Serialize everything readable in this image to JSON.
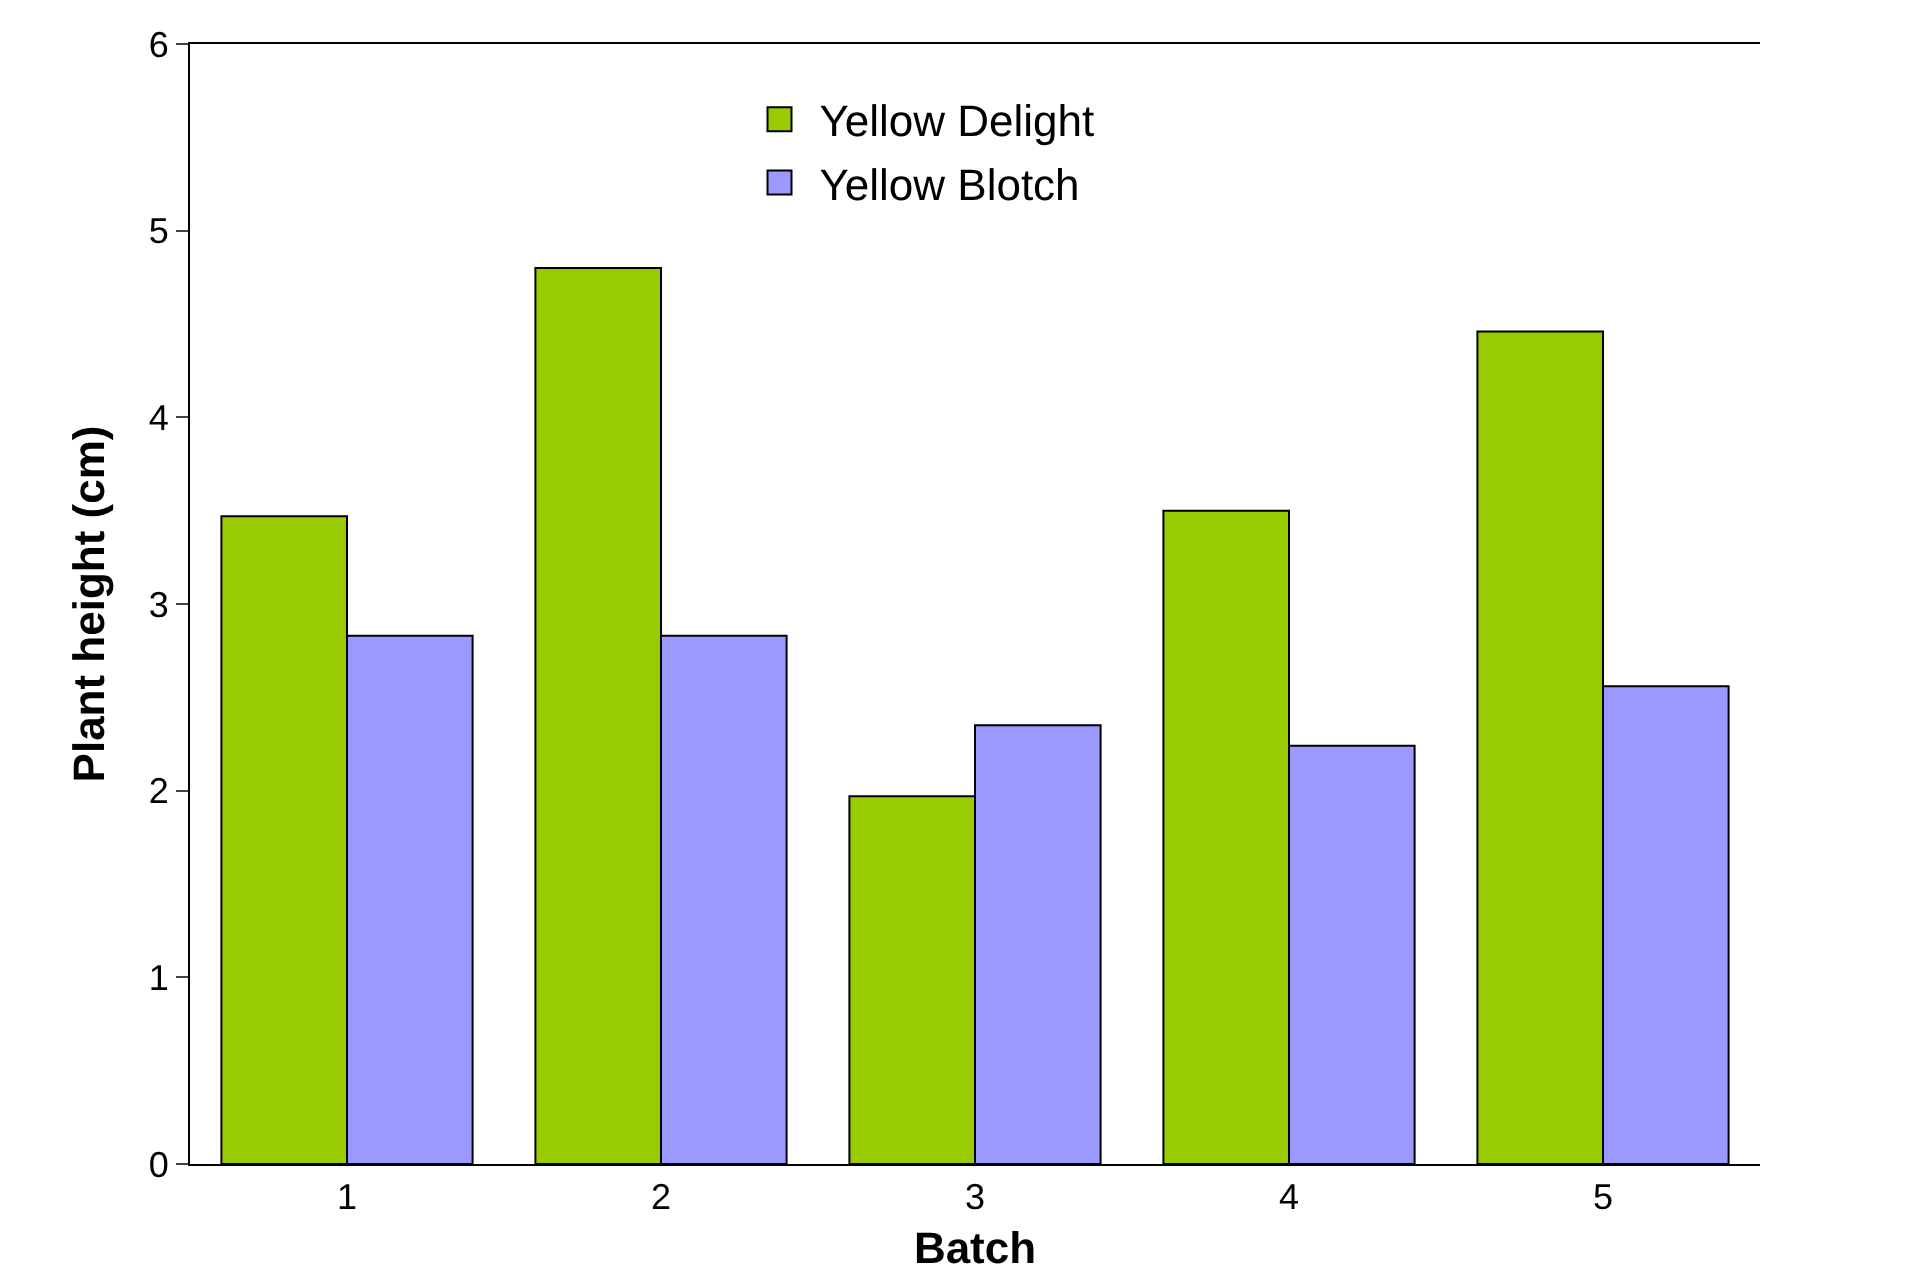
{
  "chart_data": {
    "type": "bar",
    "xlabel": "Batch",
    "ylabel": "Plant height (cm)",
    "categories": [
      "1",
      "2",
      "3",
      "4",
      "5"
    ],
    "series": [
      {
        "name": "Yellow Delight",
        "color": "#99cc00",
        "values": [
          3.47,
          4.8,
          1.97,
          3.5,
          4.46
        ]
      },
      {
        "name": "Yellow Blotch",
        "color": "#9999ff",
        "values": [
          2.83,
          2.83,
          2.35,
          2.24,
          2.56
        ]
      }
    ],
    "ylim": [
      0,
      6
    ],
    "yticks": [
      0,
      1,
      2,
      3,
      4,
      5,
      6
    ],
    "legend": "top"
  }
}
